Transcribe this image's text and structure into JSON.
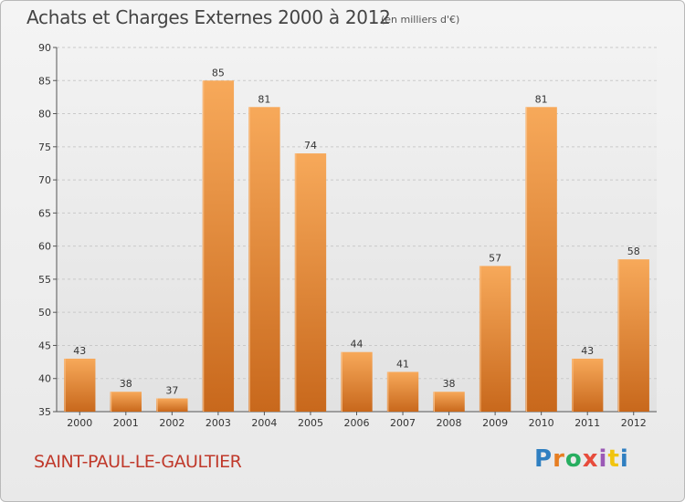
{
  "title": "Achats et Charges Externes 2000 à 2012",
  "subtitle": "(en milliers d'€)",
  "city": "SAINT-PAUL-LE-GAULTIER",
  "logo": {
    "letters": [
      "P",
      "r",
      "o",
      "x",
      "i",
      "t",
      "i"
    ],
    "colors": [
      "#2f7fc1",
      "#e67e22",
      "#27ae60",
      "#e74c3c",
      "#9b59b6",
      "#f1c40f",
      "#2f7fc1"
    ]
  },
  "colors": {
    "bar_light": "#f7a95a",
    "bar_dark": "#c8681c",
    "grid": "#c9c9c9",
    "axis": "#555555"
  },
  "chart_data": {
    "type": "bar",
    "title": "Achats et Charges Externes 2000 à 2012",
    "subtitle": "(en milliers d'€)",
    "categories": [
      "2000",
      "2001",
      "2002",
      "2003",
      "2004",
      "2005",
      "2006",
      "2007",
      "2008",
      "2009",
      "2010",
      "2011",
      "2012"
    ],
    "values": [
      43,
      38,
      37,
      85,
      81,
      74,
      44,
      41,
      38,
      57,
      81,
      43,
      58
    ],
    "ylim": [
      35,
      90
    ],
    "yticks": [
      35,
      40,
      45,
      50,
      55,
      60,
      65,
      70,
      75,
      80,
      85,
      90
    ],
    "grid": true,
    "xlabel": "",
    "ylabel": ""
  }
}
